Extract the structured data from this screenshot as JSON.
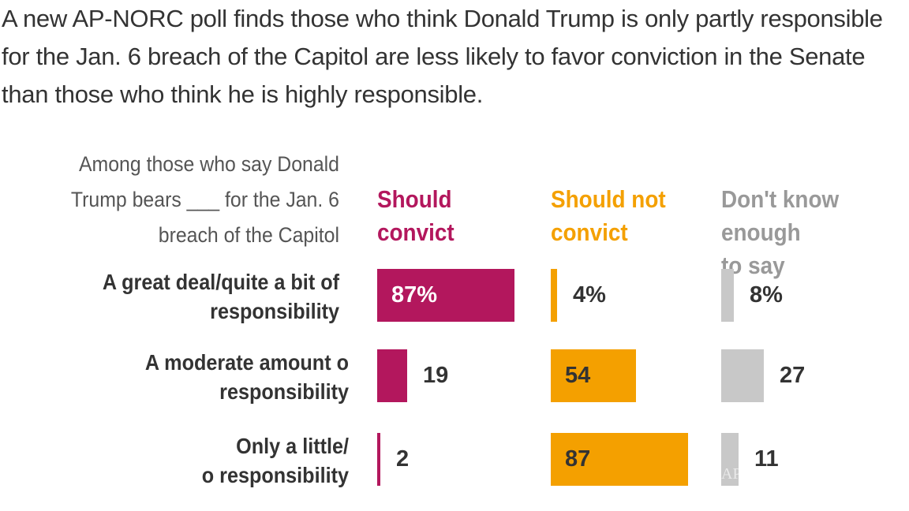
{
  "chart_data": {
    "type": "bar",
    "orientation": "horizontal",
    "title": "A new AP-NORC poll finds those who think Donald Trump is only partly responsible for the Jan. 6 breach of the Capitol are less likely to favor conviction in the Senate than those who think he is highly responsible.",
    "row_header": "Among those who say Donald Trump bears ___ for the Jan. 6 breach of the Capitol",
    "categories": [
      "A great deal/quite a bit of responsibility",
      "A moderate amount of responsibility",
      "Only a little/ no responsibility"
    ],
    "series": [
      {
        "name": "Should convict",
        "color": "#b3175d",
        "values": [
          87,
          19,
          2
        ],
        "labels": [
          "87%",
          "19",
          "2"
        ]
      },
      {
        "name": "Should not convict",
        "color": "#f4a000",
        "values": [
          4,
          54,
          87
        ],
        "labels": [
          "4%",
          "54",
          "87"
        ]
      },
      {
        "name": "Don't know enough to say",
        "color": "#c8c8c8",
        "header_color": "#999999",
        "values": [
          8,
          27,
          11
        ],
        "labels": [
          "8%",
          "27",
          "11"
        ]
      }
    ],
    "xlim": [
      0,
      100
    ],
    "grid": false,
    "legend": "column headers"
  },
  "watermark": "AP"
}
